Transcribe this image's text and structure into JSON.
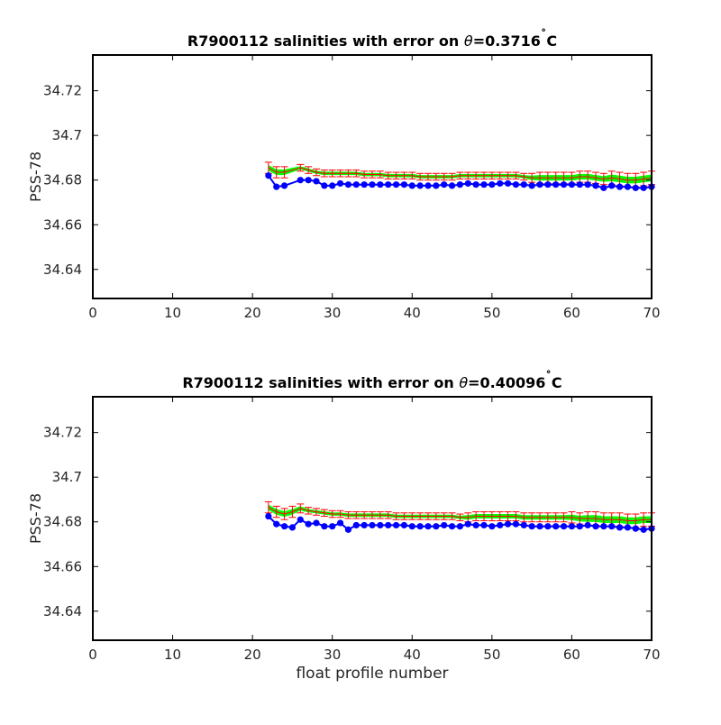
{
  "chart_data": [
    {
      "type": "line",
      "title": "R7900112 salinities with error on θ=0.3716˚C",
      "title_parts": {
        "prefix": "R7900112 salinities with error on ",
        "symbol": "θ",
        "value": "=0.3716",
        "degree": "˚",
        "unit": "C"
      },
      "xlabel": "",
      "ylabel": "PSS-78",
      "xlim": [
        0,
        70
      ],
      "ylim": [
        34.627,
        34.736
      ],
      "xticks": [
        0,
        10,
        20,
        30,
        40,
        50,
        60,
        70
      ],
      "xtick_labels": [
        "0",
        "10",
        "20",
        "30",
        "40",
        "50",
        "60",
        "70"
      ],
      "yticks": [
        34.64,
        34.66,
        34.68,
        34.7,
        34.72
      ],
      "ytick_labels": [
        "34.64",
        "34.66",
        "34.68",
        "34.7",
        "34.72"
      ],
      "grid": false,
      "series": [
        {
          "role": "uncalibrated",
          "color": "#0000ff",
          "x": [
            22,
            23,
            24,
            26,
            27,
            28,
            29,
            30,
            31,
            32,
            33,
            34,
            35,
            36,
            37,
            38,
            39,
            40,
            41,
            42,
            43,
            44,
            45,
            46,
            47,
            48,
            49,
            50,
            51,
            52,
            53,
            54,
            55,
            56,
            57,
            58,
            59,
            60,
            61,
            62,
            63,
            64,
            65,
            66,
            67,
            68,
            69,
            70
          ],
          "values": [
            34.682,
            34.677,
            34.6775,
            34.68,
            34.68,
            34.6795,
            34.6775,
            34.6775,
            34.6785,
            34.678,
            34.678,
            34.678,
            34.678,
            34.678,
            34.678,
            34.678,
            34.678,
            34.6775,
            34.6775,
            34.6775,
            34.6775,
            34.678,
            34.6775,
            34.678,
            34.6785,
            34.678,
            34.678,
            34.678,
            34.6785,
            34.6785,
            34.678,
            34.678,
            34.6775,
            34.678,
            34.678,
            34.678,
            34.678,
            34.678,
            34.678,
            34.678,
            34.6775,
            34.6765,
            34.6775,
            34.677,
            34.677,
            34.6765,
            34.6765,
            34.677
          ]
        },
        {
          "role": "calibrated",
          "color": "#ff0000",
          "band_color": "#00ff00",
          "x": [
            22,
            23,
            24,
            26,
            27,
            28,
            29,
            30,
            31,
            32,
            33,
            34,
            35,
            36,
            37,
            38,
            39,
            40,
            41,
            42,
            43,
            44,
            45,
            46,
            47,
            48,
            49,
            50,
            51,
            52,
            53,
            54,
            55,
            56,
            57,
            58,
            59,
            60,
            61,
            62,
            63,
            64,
            65,
            66,
            67,
            68,
            69,
            70
          ],
          "values": [
            34.6855,
            34.6835,
            34.6835,
            34.6855,
            34.6845,
            34.6835,
            34.683,
            34.683,
            34.683,
            34.683,
            34.683,
            34.6825,
            34.6825,
            34.6825,
            34.682,
            34.682,
            34.682,
            34.682,
            34.6815,
            34.6815,
            34.6815,
            34.6815,
            34.6815,
            34.682,
            34.682,
            34.682,
            34.682,
            34.682,
            34.682,
            34.682,
            34.682,
            34.6815,
            34.681,
            34.681,
            34.681,
            34.681,
            34.681,
            34.681,
            34.6815,
            34.6815,
            34.681,
            34.6805,
            34.681,
            34.6805,
            34.68,
            34.68,
            34.6805,
            34.681
          ],
          "errors": [
            0.0025,
            0.0025,
            0.0025,
            0.0015,
            0.0015,
            0.0015,
            0.0015,
            0.0015,
            0.0015,
            0.0015,
            0.0015,
            0.0015,
            0.0015,
            0.0015,
            0.0015,
            0.0015,
            0.0015,
            0.0015,
            0.0015,
            0.0015,
            0.0015,
            0.0015,
            0.0015,
            0.0015,
            0.0015,
            0.0015,
            0.0015,
            0.0015,
            0.0015,
            0.0015,
            0.0015,
            0.0015,
            0.002,
            0.0025,
            0.0025,
            0.0025,
            0.0025,
            0.0025,
            0.0025,
            0.0025,
            0.0025,
            0.0025,
            0.003,
            0.003,
            0.003,
            0.003,
            0.003,
            0.003
          ]
        }
      ]
    },
    {
      "type": "line",
      "title": "R7900112 salinities with error on θ=0.40096˚C",
      "title_parts": {
        "prefix": "R7900112 salinities with error on ",
        "symbol": "θ",
        "value": "=0.40096",
        "degree": "˚",
        "unit": "C"
      },
      "xlabel": "float profile number",
      "ylabel": "PSS-78",
      "xlim": [
        0,
        70
      ],
      "ylim": [
        34.627,
        34.736
      ],
      "xticks": [
        0,
        10,
        20,
        30,
        40,
        50,
        60,
        70
      ],
      "xtick_labels": [
        "0",
        "10",
        "20",
        "30",
        "40",
        "50",
        "60",
        "70"
      ],
      "yticks": [
        34.64,
        34.66,
        34.68,
        34.7,
        34.72
      ],
      "ytick_labels": [
        "34.64",
        "34.66",
        "34.68",
        "34.7",
        "34.72"
      ],
      "grid": false,
      "series": [
        {
          "role": "uncalibrated",
          "color": "#0000ff",
          "x": [
            22,
            23,
            24,
            25,
            26,
            27,
            28,
            29,
            30,
            31,
            32,
            33,
            34,
            35,
            36,
            37,
            38,
            39,
            40,
            41,
            42,
            43,
            44,
            45,
            46,
            47,
            48,
            49,
            50,
            51,
            52,
            53,
            54,
            55,
            56,
            57,
            58,
            59,
            60,
            61,
            62,
            63,
            64,
            65,
            66,
            67,
            68,
            69,
            70
          ],
          "values": [
            34.6825,
            34.679,
            34.678,
            34.6775,
            34.681,
            34.679,
            34.6795,
            34.678,
            34.678,
            34.6795,
            34.6765,
            34.6785,
            34.6785,
            34.6785,
            34.6785,
            34.6785,
            34.6785,
            34.6785,
            34.678,
            34.678,
            34.678,
            34.678,
            34.6785,
            34.678,
            34.678,
            34.679,
            34.6785,
            34.6785,
            34.678,
            34.6785,
            34.679,
            34.679,
            34.6785,
            34.678,
            34.678,
            34.678,
            34.678,
            34.678,
            34.678,
            34.678,
            34.6785,
            34.678,
            34.678,
            34.678,
            34.6775,
            34.6775,
            34.677,
            34.6765,
            34.677
          ]
        },
        {
          "role": "calibrated",
          "color": "#ff0000",
          "band_color": "#00ff00",
          "x": [
            22,
            23,
            24,
            25,
            26,
            27,
            28,
            29,
            30,
            31,
            32,
            33,
            34,
            35,
            36,
            37,
            38,
            39,
            40,
            41,
            42,
            43,
            44,
            45,
            46,
            47,
            48,
            49,
            50,
            51,
            52,
            53,
            54,
            55,
            56,
            57,
            58,
            59,
            60,
            61,
            62,
            63,
            64,
            65,
            66,
            67,
            68,
            69,
            70
          ],
          "values": [
            34.6865,
            34.6845,
            34.6835,
            34.6845,
            34.686,
            34.685,
            34.6845,
            34.684,
            34.6835,
            34.6835,
            34.683,
            34.683,
            34.683,
            34.683,
            34.683,
            34.683,
            34.6825,
            34.6825,
            34.6825,
            34.6825,
            34.6825,
            34.6825,
            34.6825,
            34.6825,
            34.682,
            34.682,
            34.6825,
            34.6825,
            34.6825,
            34.6825,
            34.6825,
            34.6825,
            34.682,
            34.682,
            34.682,
            34.682,
            34.682,
            34.682,
            34.682,
            34.6815,
            34.6815,
            34.6815,
            34.681,
            34.681,
            34.681,
            34.6805,
            34.6805,
            34.681,
            34.681
          ],
          "errors": [
            0.0025,
            0.0025,
            0.0025,
            0.0025,
            0.002,
            0.0015,
            0.0015,
            0.0015,
            0.0015,
            0.0015,
            0.0015,
            0.0015,
            0.0015,
            0.0015,
            0.0015,
            0.0015,
            0.0015,
            0.0015,
            0.0015,
            0.0015,
            0.0015,
            0.0015,
            0.0015,
            0.0015,
            0.0015,
            0.002,
            0.002,
            0.002,
            0.002,
            0.002,
            0.002,
            0.002,
            0.002,
            0.002,
            0.002,
            0.002,
            0.002,
            0.002,
            0.0025,
            0.0025,
            0.003,
            0.003,
            0.003,
            0.003,
            0.003,
            0.003,
            0.003,
            0.003,
            0.003
          ]
        }
      ]
    }
  ]
}
